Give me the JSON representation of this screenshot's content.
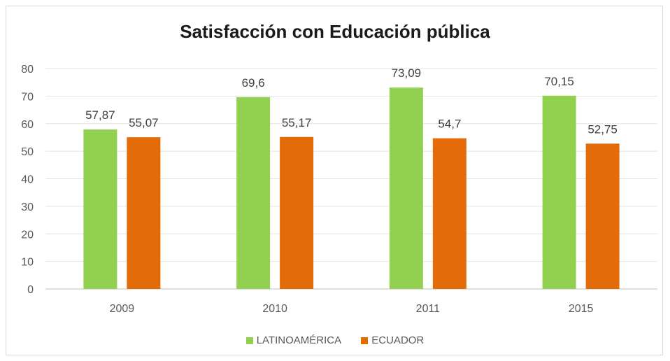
{
  "chart_data": {
    "type": "bar",
    "title": "Satisfacción con Educación pública",
    "categories": [
      "2009",
      "2010",
      "2011",
      "2015"
    ],
    "series": [
      {
        "name": "LATINOAMÉRICA",
        "values": [
          57.87,
          69.6,
          73.09,
          70.15
        ],
        "labels": [
          "57,87",
          "69,6",
          "73,09",
          "70,15"
        ],
        "color": "#92d050"
      },
      {
        "name": "ECUADOR",
        "values": [
          55.07,
          55.17,
          54.7,
          52.75
        ],
        "labels": [
          "55,07",
          "55,17",
          "54,7",
          "52,75"
        ],
        "color": "#e36c09"
      }
    ],
    "ylim": [
      0,
      80
    ],
    "yticks": [
      0,
      10,
      20,
      30,
      40,
      50,
      60,
      70,
      80
    ],
    "grid": true,
    "legend": "bottom"
  }
}
